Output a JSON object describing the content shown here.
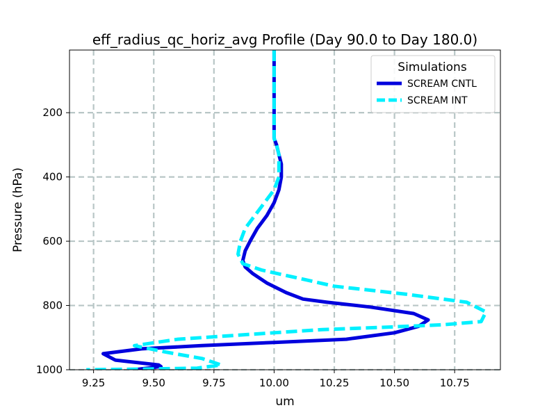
{
  "chart_data": {
    "type": "line",
    "title": "eff_radius_qc_horiz_avg Profile (Day 90.0 to Day 180.0)",
    "xlabel": "um",
    "ylabel": "Pressure (hPa)",
    "xlim": [
      9.15,
      10.94
    ],
    "ylim": [
      1000,
      5
    ],
    "y_inverted": true,
    "grid": true,
    "xticks": [
      9.25,
      9.5,
      9.75,
      10.0,
      10.25,
      10.5,
      10.75
    ],
    "xtick_labels": [
      "9.25",
      "9.50",
      "9.75",
      "10.00",
      "10.25",
      "10.50",
      "10.75"
    ],
    "yticks": [
      200,
      400,
      600,
      800,
      1000
    ],
    "ytick_labels": [
      "200",
      "400",
      "600",
      "800",
      "1000"
    ],
    "legend": {
      "title": "Simulations",
      "position": "top-right"
    },
    "series": [
      {
        "name": "SCREAM CNTL",
        "color": "#0000dd",
        "style": "solid",
        "x": [
          10.0,
          10.0,
          10.0,
          10.0,
          10.0,
          10.0,
          10.01,
          10.02,
          10.03,
          10.03,
          10.02,
          10.0,
          9.97,
          9.93,
          9.9,
          9.88,
          9.87,
          9.88,
          9.91,
          9.97,
          10.05,
          10.12,
          10.22,
          10.4,
          10.58,
          10.64,
          10.6,
          10.5,
          10.3,
          10.0,
          9.7,
          9.45,
          9.29,
          9.34,
          9.52,
          9.53,
          9.42
        ],
        "y": [
          5,
          100,
          200,
          240,
          260,
          280,
          300,
          330,
          360,
          400,
          440,
          480,
          520,
          560,
          600,
          630,
          660,
          680,
          700,
          730,
          760,
          780,
          790,
          805,
          825,
          845,
          865,
          885,
          905,
          915,
          925,
          935,
          950,
          970,
          985,
          990,
          1000
        ]
      },
      {
        "name": "SCREAM INT",
        "color": "#00f0ff",
        "style": "dashed",
        "x": [
          10.0,
          10.0,
          10.0,
          10.0,
          10.0,
          10.0,
          10.01,
          10.02,
          10.02,
          10.02,
          10.0,
          9.96,
          9.92,
          9.88,
          9.86,
          9.85,
          9.87,
          9.95,
          10.1,
          10.25,
          10.55,
          10.8,
          10.88,
          10.86,
          10.7,
          10.45,
          10.2,
          9.9,
          9.6,
          9.42,
          9.55,
          9.7,
          9.78,
          9.68,
          9.45,
          9.22
        ],
        "y": [
          5,
          100,
          200,
          240,
          260,
          280,
          300,
          330,
          360,
          400,
          440,
          480,
          520,
          560,
          600,
          640,
          670,
          690,
          715,
          740,
          765,
          790,
          820,
          850,
          860,
          868,
          875,
          890,
          905,
          925,
          945,
          965,
          985,
          995,
          998,
          1000
        ]
      }
    ]
  }
}
